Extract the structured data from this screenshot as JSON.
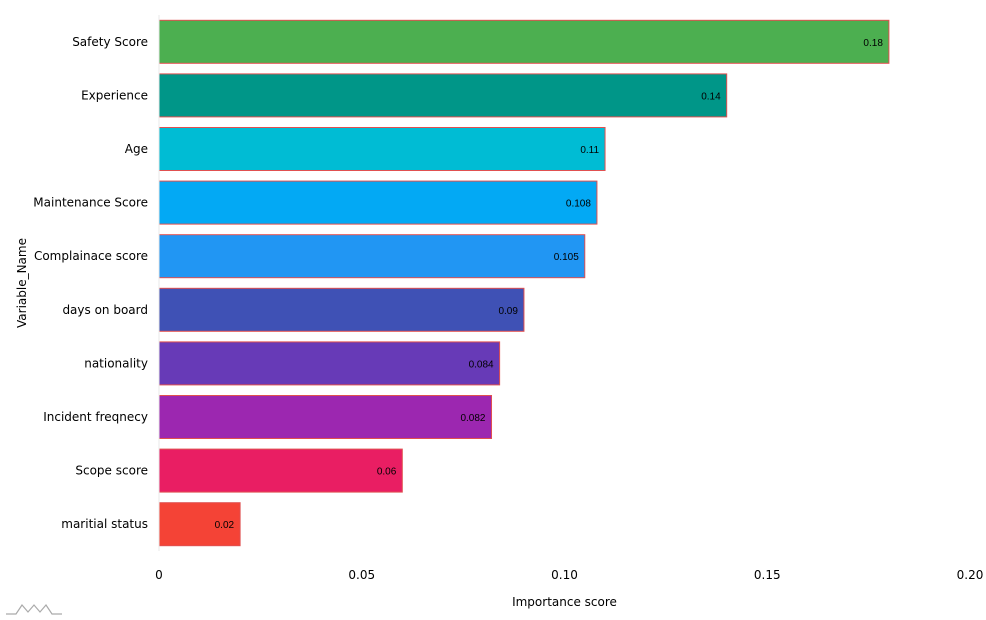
{
  "chart_data": {
    "type": "bar",
    "orientation": "horizontal",
    "categories": [
      "Safety Score",
      "Experience",
      "Age",
      "Maintenance Score",
      "Complainace score",
      "days on board",
      "nationality",
      "Incident freqnecy",
      "Scope score",
      "maritial status"
    ],
    "values": [
      0.18,
      0.14,
      0.11,
      0.108,
      0.105,
      0.09,
      0.084,
      0.082,
      0.06,
      0.02
    ],
    "data_labels": [
      "0.18",
      "0.14",
      "0.11",
      "0.108",
      "0.105",
      "0.09",
      "0.084",
      "0.082",
      "0.06",
      "0.02"
    ],
    "colors": [
      "#4caf50",
      "#009688",
      "#00bcd4",
      "#03a9f4",
      "#2196f3",
      "#3f51b5",
      "#673ab7",
      "#9c27b0",
      "#e91e63",
      "#f44336"
    ],
    "bar_outline_color": "#e05050",
    "xlabel": "Importance score",
    "ylabel": "Variable_Name",
    "xlim": [
      0,
      0.2
    ],
    "xticks": [
      0,
      0.05,
      0.1,
      0.15,
      0.2
    ],
    "xtick_labels": [
      "0",
      "0.05",
      "0.10",
      "0.15",
      "0.20"
    ],
    "grid": false,
    "legend": "none"
  }
}
